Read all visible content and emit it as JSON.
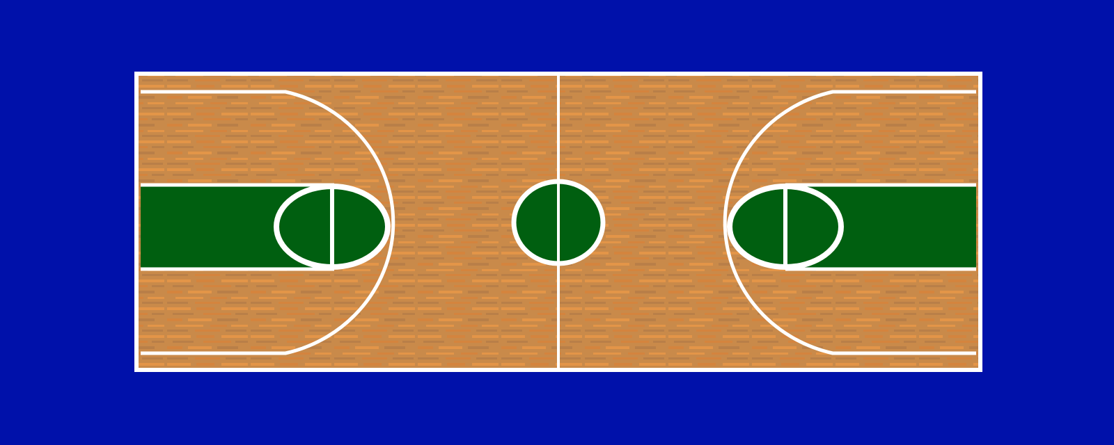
{
  "scene": {
    "type": "basketball-court-top-view"
  },
  "colors": {
    "background": "#0011AA",
    "wood_base": "#C98A4A",
    "wood_plank_light": "#E39548",
    "wood_plank_mid": "#D4843E",
    "wood_plank_dark": "#B97F48",
    "paint": "#005F10",
    "lines": "#FFFFFF"
  },
  "icons": {
    "court": "basketball-court",
    "left_hoop_area": "key-left",
    "right_hoop_area": "key-right",
    "center": "center-circle"
  }
}
